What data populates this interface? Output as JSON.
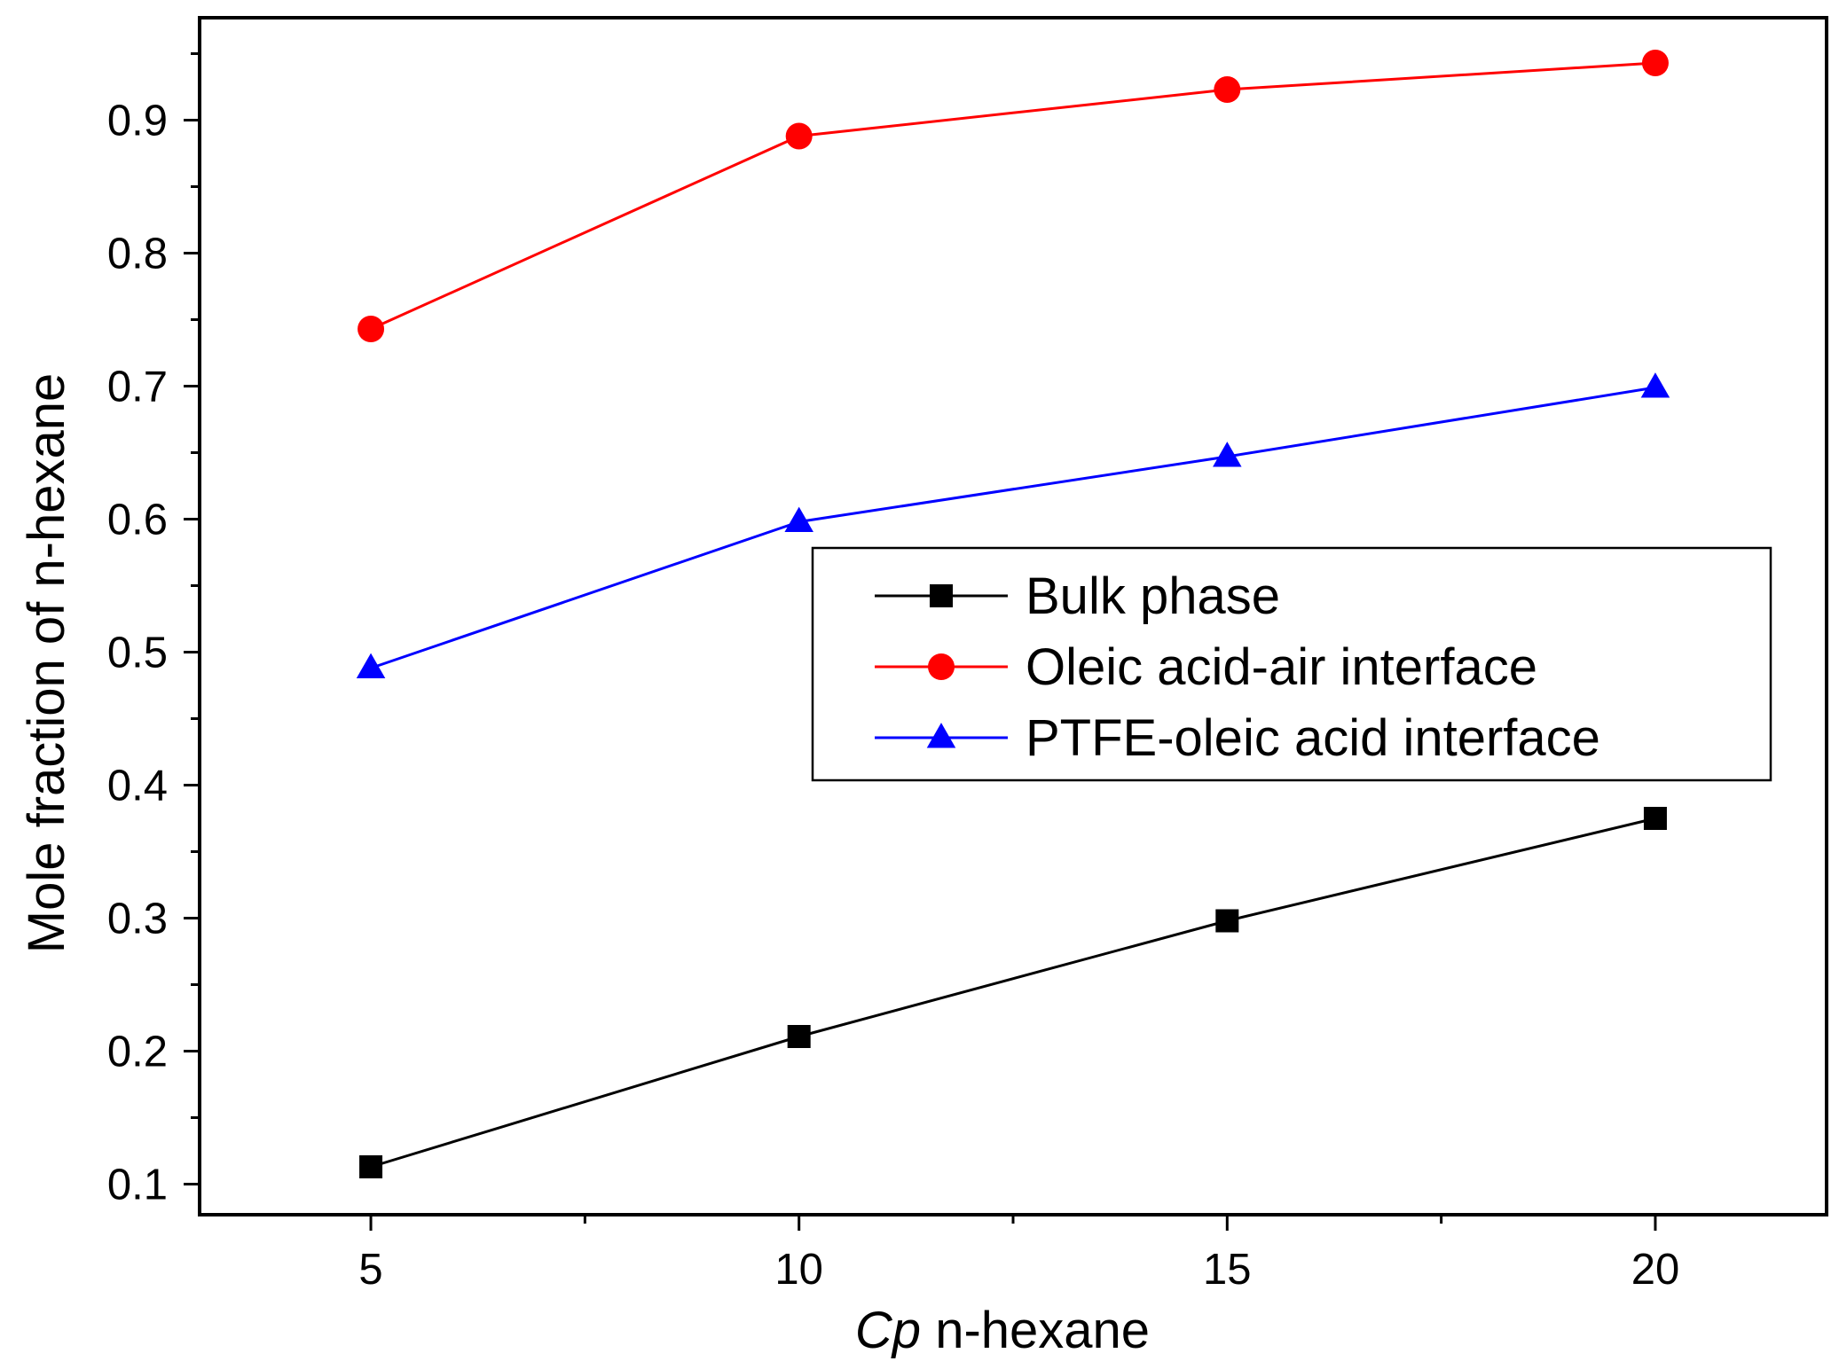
{
  "chart_data": {
    "type": "line",
    "title": "",
    "xlabel": "Cp n-hexane",
    "xlabel_italic_part": "Cp",
    "xlabel_rest": " n-hexane",
    "ylabel": "Mole fraction of n-hexane",
    "x": [
      5,
      10,
      15,
      20
    ],
    "xlim": [
      3,
      22
    ],
    "ylim": [
      0.077,
      0.977
    ],
    "xticks": [
      5,
      10,
      15,
      20
    ],
    "xtick_labels": [
      "5",
      "10",
      "15",
      "20"
    ],
    "x_minor_ticks": [
      7.5,
      12.5,
      17.5
    ],
    "yticks": [
      0.1,
      0.2,
      0.3,
      0.4,
      0.5,
      0.6,
      0.7,
      0.8,
      0.9
    ],
    "ytick_labels": [
      "0.1",
      "0.2",
      "0.3",
      "0.4",
      "0.5",
      "0.6",
      "0.7",
      "0.8",
      "0.9"
    ],
    "y_minor_ticks": [
      0.15,
      0.25,
      0.35,
      0.45,
      0.55,
      0.65,
      0.75,
      0.85,
      0.95
    ],
    "grid": false,
    "legend_position": "center-right",
    "series": [
      {
        "name": "Bulk phase",
        "color": "#000000",
        "marker": "square",
        "values": [
          0.113,
          0.211,
          0.298,
          0.375
        ]
      },
      {
        "name": "Oleic acid-air interface",
        "color": "#ff0000",
        "marker": "circle",
        "values": [
          0.743,
          0.888,
          0.923,
          0.943
        ]
      },
      {
        "name": "PTFE-oleic acid interface",
        "color": "#0000ff",
        "marker": "triangle",
        "values": [
          0.488,
          0.598,
          0.647,
          0.699
        ]
      }
    ]
  }
}
